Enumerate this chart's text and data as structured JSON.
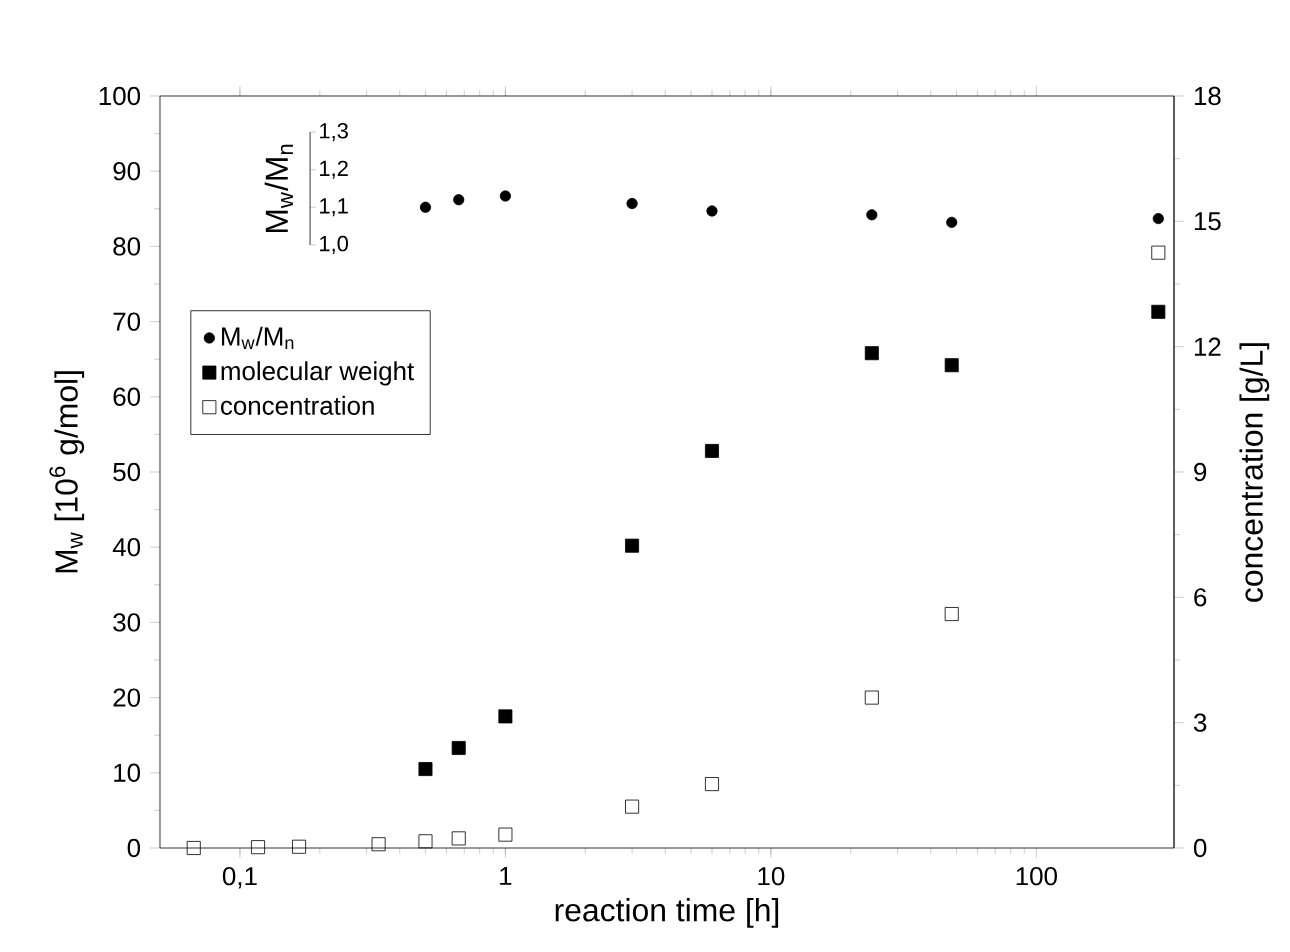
{
  "chart_data": {
    "type": "scatter",
    "xlabel": "reaction time [h]",
    "ylabel": "M$_{w}$ [10$^{6}$ g/mol]",
    "y2label": "concentration [g/L]",
    "y3label": "M$_{w}$/M$_{n}$",
    "log": "x",
    "legend": "left",
    "grid": false,
    "xlim": [
      0.05,
      330
    ],
    "xticks": [
      {
        "value": 0.1,
        "label": "0,1"
      },
      1,
      10,
      100
    ],
    "ylim": [
      0,
      100
    ],
    "yticks": [
      0,
      10,
      20,
      30,
      40,
      50,
      60,
      70,
      80,
      90,
      100
    ],
    "y2lim": [
      0,
      18
    ],
    "y2ticks": [
      0,
      3,
      6,
      9,
      12,
      15,
      18
    ],
    "y3lim": [
      1.0,
      1.3
    ],
    "y3ticks": [
      {
        "value": 1.0,
        "label": "1,0"
      },
      {
        "value": 1.1,
        "label": "1,1"
      },
      {
        "value": 1.2,
        "label": "1,2"
      },
      {
        "value": 1.3,
        "label": "1,3"
      }
    ],
    "series": [
      {
        "name": "M$_{w}$/M$_{n}$",
        "color": "#000000",
        "marker": "circle",
        "axis": "y3",
        "x": [
          0.5,
          0.667,
          1,
          3,
          6,
          24,
          48,
          288
        ],
        "values": [
          1.1,
          1.12,
          1.13,
          1.11,
          1.09,
          1.08,
          1.06,
          1.07
        ]
      },
      {
        "name": "molecular weight",
        "color": "#000000",
        "marker": "square",
        "x": [
          0.5,
          0.667,
          1,
          3,
          6,
          24,
          48,
          288
        ],
        "values": [
          10.5,
          13.3,
          17.5,
          40.2,
          52.8,
          65.8,
          64.2,
          71.3
        ]
      },
      {
        "name": "concentration",
        "color": "#000000",
        "marker": "square",
        "axis": "y2",
        "x": [
          0.067,
          0.117,
          0.167,
          0.333,
          0.5,
          0.667,
          1,
          3,
          6,
          24,
          48,
          288
        ],
        "values": [
          0,
          0.02,
          0.03,
          0.09,
          0.16,
          0.23,
          0.32,
          0.99,
          1.53,
          3.6,
          5.6,
          14.25
        ]
      }
    ]
  }
}
